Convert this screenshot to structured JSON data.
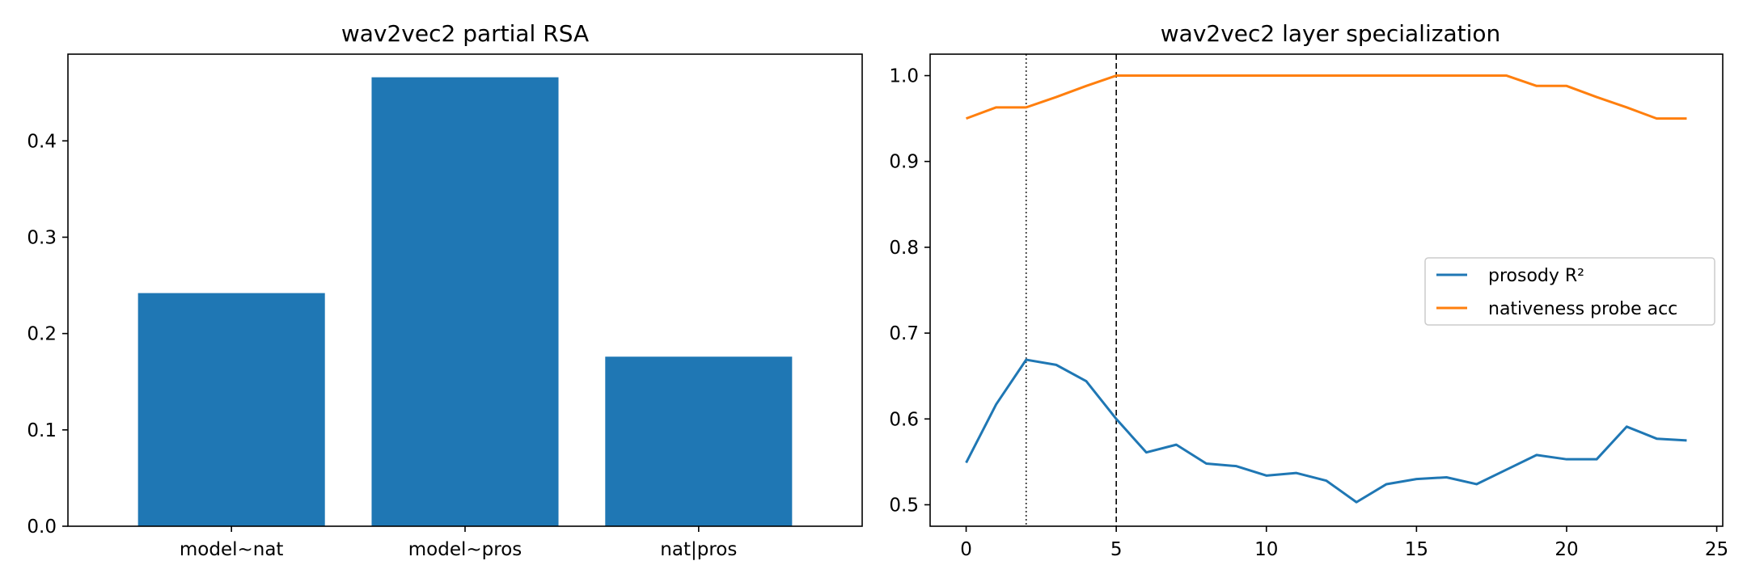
{
  "chart_data": [
    {
      "type": "bar",
      "title": "wav2vec2 partial RSA",
      "xlabel": "",
      "ylabel": "",
      "categories": [
        "model~nat",
        "model~pros",
        "nat|pros"
      ],
      "values": [
        0.242,
        0.466,
        0.176
      ],
      "ylim": [
        0,
        0.49
      ],
      "yticks": [
        0.0,
        0.1,
        0.2,
        0.3,
        0.4
      ],
      "ytick_labels": [
        "0.0",
        "0.1",
        "0.2",
        "0.3",
        "0.4"
      ],
      "color": "#1f77b4",
      "grid": false
    },
    {
      "type": "line",
      "title": "wav2vec2 layer specialization",
      "xlabel": "",
      "ylabel": "",
      "xlim": [
        -1.2,
        25.2
      ],
      "ylim": [
        0.475,
        1.025
      ],
      "xticks": [
        0,
        5,
        10,
        15,
        20,
        25
      ],
      "xtick_labels": [
        "0",
        "5",
        "10",
        "15",
        "20",
        "25"
      ],
      "yticks": [
        0.5,
        0.6,
        0.7,
        0.8,
        0.9,
        1.0
      ],
      "ytick_labels": [
        "0.5",
        "0.6",
        "0.7",
        "0.8",
        "0.9",
        "1.0"
      ],
      "grid": false,
      "legend_position": "center-right",
      "series": [
        {
          "name": "prosody R²",
          "color": "#1f77b4",
          "x": [
            0,
            1,
            2,
            3,
            4,
            5,
            6,
            7,
            8,
            9,
            10,
            11,
            12,
            13,
            14,
            15,
            16,
            17,
            18,
            19,
            20,
            21,
            22,
            23,
            24
          ],
          "y": [
            0.549,
            0.617,
            0.669,
            0.663,
            0.644,
            0.6,
            0.561,
            0.57,
            0.548,
            0.545,
            0.534,
            0.537,
            0.528,
            0.503,
            0.524,
            0.53,
            0.532,
            0.524,
            0.541,
            0.558,
            0.553,
            0.553,
            0.591,
            0.577,
            0.575
          ]
        },
        {
          "name": "nativeness probe acc",
          "color": "#ff7f0e",
          "x": [
            0,
            1,
            2,
            3,
            4,
            5,
            6,
            7,
            8,
            9,
            10,
            11,
            12,
            13,
            14,
            15,
            16,
            17,
            18,
            19,
            20,
            21,
            22,
            23,
            24
          ],
          "y": [
            0.95,
            0.963,
            0.963,
            0.975,
            0.988,
            1.0,
            1.0,
            1.0,
            1.0,
            1.0,
            1.0,
            1.0,
            1.0,
            1.0,
            1.0,
            1.0,
            1.0,
            1.0,
            1.0,
            0.988,
            0.988,
            0.975,
            0.963,
            0.95,
            0.95
          ]
        }
      ],
      "vlines": [
        {
          "x": 2,
          "style": "dotted"
        },
        {
          "x": 5,
          "style": "dashed"
        }
      ]
    }
  ]
}
